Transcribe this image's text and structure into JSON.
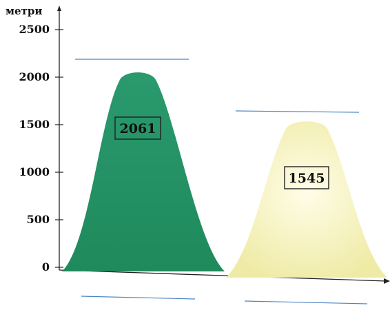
{
  "chart_data": {
    "type": "area",
    "ylabel": "метри",
    "yticks": [
      0,
      500,
      1000,
      1500,
      2000,
      2500
    ],
    "ylim": [
      0,
      2600
    ],
    "series": [
      {
        "value": 2061,
        "label": "2061",
        "fill": "#2e9e70",
        "name_line_above": true,
        "name_line_below": true
      },
      {
        "value": 1545,
        "label": "1545",
        "fill": "#f4f1bd",
        "name_line_above": true,
        "name_line_below": true
      }
    ],
    "colors": {
      "axis": "#222222",
      "blank_line": "#4b84c4",
      "label_border": "#222222"
    }
  }
}
